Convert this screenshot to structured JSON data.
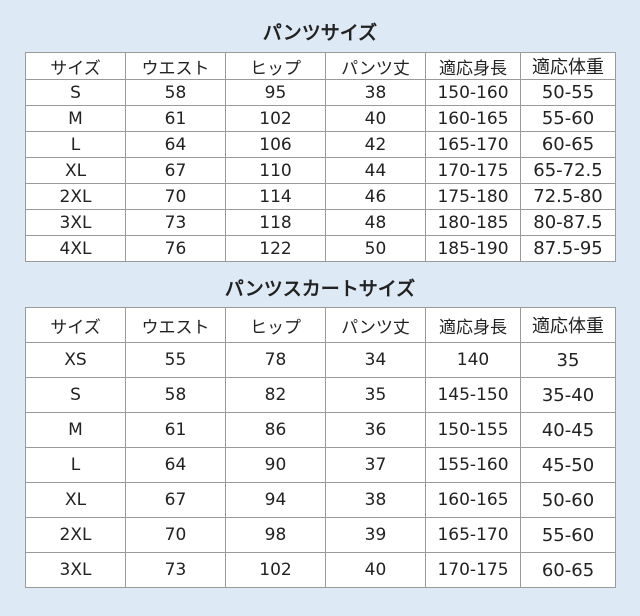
{
  "tables": [
    {
      "title": "パンツサイズ",
      "header": [
        "サイズ",
        "ウエスト",
        "ヒップ",
        "パンツ丈",
        "適応身長",
        "適応体重"
      ],
      "rows": [
        [
          "S",
          "58",
          "95",
          "38",
          "150-160",
          "50-55"
        ],
        [
          "M",
          "61",
          "102",
          "40",
          "160-165",
          "55-60"
        ],
        [
          "L",
          "64",
          "106",
          "42",
          "165-170",
          "60-65"
        ],
        [
          "XL",
          "67",
          "110",
          "44",
          "170-175",
          "65-72.5"
        ],
        [
          "2XL",
          "70",
          "114",
          "46",
          "175-180",
          "72.5-80"
        ],
        [
          "3XL",
          "73",
          "118",
          "48",
          "180-185",
          "80-87.5"
        ],
        [
          "4XL",
          "76",
          "122",
          "50",
          "185-190",
          "87.5-95"
        ]
      ]
    },
    {
      "title": "パンツスカートサイズ",
      "header": [
        "サイズ",
        "ウエスト",
        "ヒップ",
        "パンツ丈",
        "適応身長",
        "適応体重"
      ],
      "rows": [
        [
          "XS",
          "55",
          "78",
          "34",
          "140",
          "35"
        ],
        [
          "S",
          "58",
          "82",
          "35",
          "145-150",
          "35-40"
        ],
        [
          "M",
          "61",
          "86",
          "36",
          "150-155",
          "40-45"
        ],
        [
          "L",
          "64",
          "90",
          "37",
          "155-160",
          "45-50"
        ],
        [
          "XL",
          "67",
          "94",
          "38",
          "160-165",
          "50-60"
        ],
        [
          "2XL",
          "70",
          "98",
          "39",
          "165-170",
          "55-60"
        ],
        [
          "3XL",
          "73",
          "102",
          "40",
          "170-175",
          "60-65"
        ]
      ]
    }
  ]
}
